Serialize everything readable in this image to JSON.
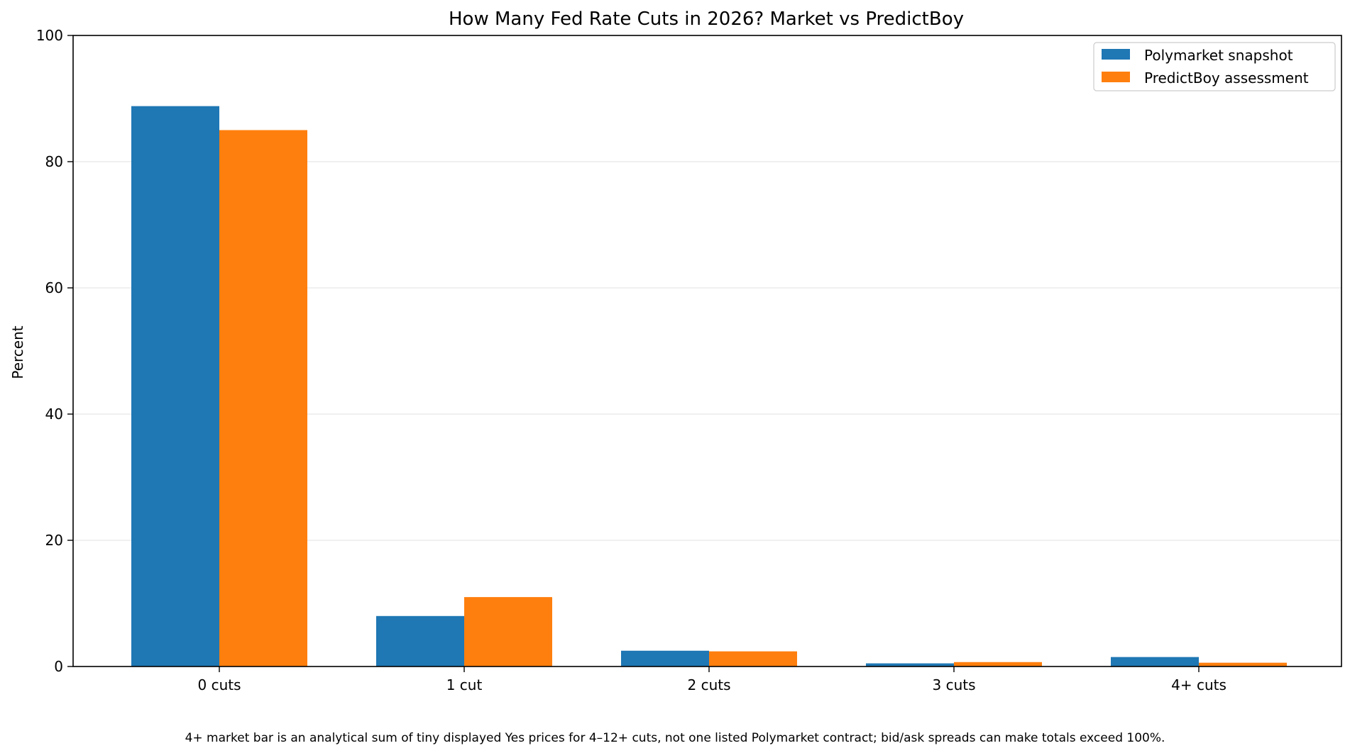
{
  "chart_data": {
    "type": "bar",
    "title": "How Many Fed Rate Cuts in 2026? Market vs PredictBoy",
    "xlabel": "",
    "ylabel": "Percent",
    "categories": [
      "0 cuts",
      "1 cut",
      "2 cuts",
      "3 cuts",
      "4+ cuts"
    ],
    "series": [
      {
        "name": "Polymarket snapshot",
        "color": "#1f77b4",
        "values": [
          88.8,
          8.0,
          2.5,
          0.5,
          1.5
        ]
      },
      {
        "name": "PredictBoy assessment",
        "color": "#ff7f0e",
        "values": [
          85.0,
          11.0,
          2.4,
          0.7,
          0.6
        ]
      }
    ],
    "ylim": [
      0,
      100
    ],
    "yticks": [
      0,
      20,
      40,
      60,
      80,
      100
    ],
    "grid": "horizontal",
    "legend_position": "top-right",
    "footnote": "4+ market bar is an analytical sum of tiny displayed Yes prices for 4–12+ cuts, not one listed Polymarket contract; bid/ask spreads can make totals exceed 100%."
  }
}
